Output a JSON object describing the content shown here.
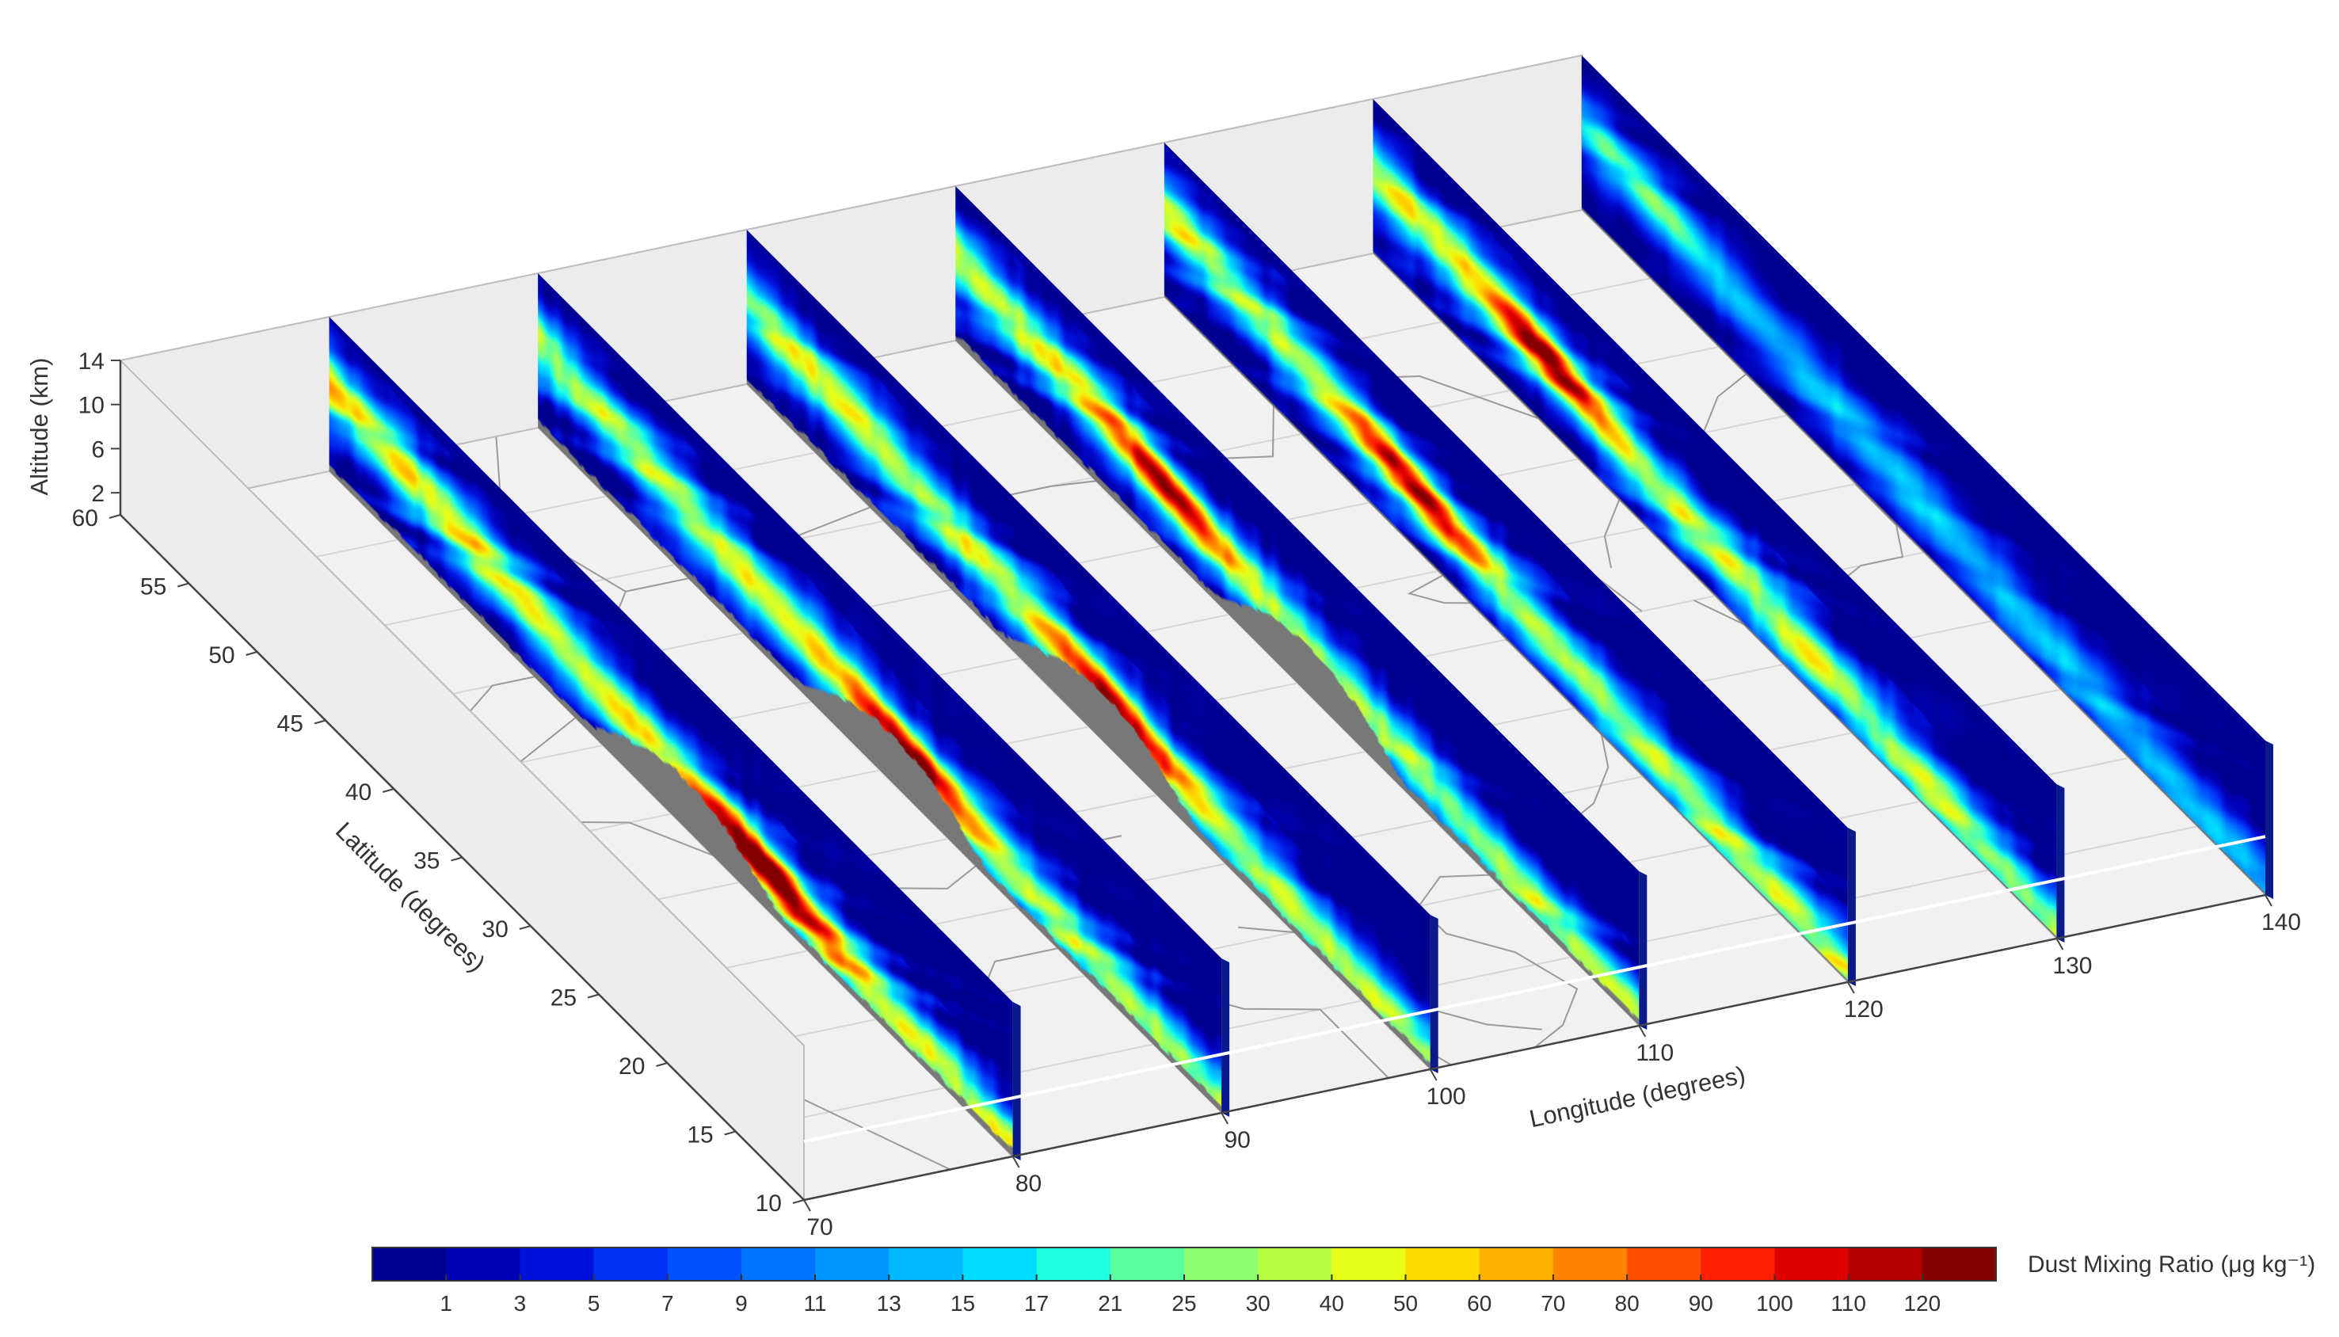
{
  "chart_data": {
    "type": "heatmap",
    "title": "",
    "style": "3d vertical curtain cross-sections over a map with coastlines and borders",
    "xlabel": "Longitude (degrees)",
    "ylabel": "Latitude (degrees)",
    "zlabel": "Altitude (km)",
    "xlim": [
      70,
      140
    ],
    "ylim": [
      10,
      60
    ],
    "zlim": [
      0,
      14
    ],
    "x_ticks": [
      "70",
      "80",
      "90",
      "100",
      "110",
      "120",
      "130",
      "140"
    ],
    "y_ticks": [
      "10",
      "15",
      "20",
      "25",
      "30",
      "35",
      "40",
      "45",
      "50",
      "55",
      "60"
    ],
    "z_ticks": [
      "2",
      "6",
      "10",
      "14"
    ],
    "grid": true,
    "curtain_longitudes": [
      80,
      90,
      100,
      110,
      120,
      130,
      140
    ],
    "colorbar": {
      "title": "Dust Mixing Ratio (μg kg⁻¹)",
      "tick_labels": [
        "1",
        "3",
        "5",
        "7",
        "9",
        "11",
        "13",
        "15",
        "17",
        "21",
        "25",
        "30",
        "40",
        "50",
        "60",
        "70",
        "80",
        "90",
        "100",
        "110",
        "120"
      ],
      "colors": [
        "#00008f",
        "#0000b4",
        "#0010d8",
        "#0030f2",
        "#0050ff",
        "#0074ff",
        "#0096ff",
        "#00b8ff",
        "#00dcff",
        "#1effe0",
        "#5affa2",
        "#8cff70",
        "#b8ff44",
        "#e6ff18",
        "#ffdc00",
        "#ffb000",
        "#ff8200",
        "#ff5000",
        "#ff2000",
        "#e00000",
        "#b40000",
        "#840000"
      ]
    },
    "curtains": [
      {
        "longitude": 80,
        "max_core_latitude": 28,
        "max_value_range": "110–120",
        "description_level": "dust layer sloping from surface at 10°N up to ~8 km at 60°N"
      },
      {
        "longitude": 90,
        "max_core_latitude": 33,
        "max_value_range": "90–110"
      },
      {
        "longitude": 100,
        "max_core_latitude": 33,
        "max_value_range": "90–110"
      },
      {
        "longitude": 110,
        "max_core_latitude": 45,
        "max_value_range": "90–100"
      },
      {
        "longitude": 120,
        "max_core_latitude": 42,
        "max_value_range": "100–120"
      },
      {
        "longitude": 130,
        "max_core_latitude": 47,
        "max_value_range": "100–120"
      },
      {
        "longitude": 140,
        "max_core_latitude": 55,
        "max_value_range": "40–60"
      }
    ]
  }
}
